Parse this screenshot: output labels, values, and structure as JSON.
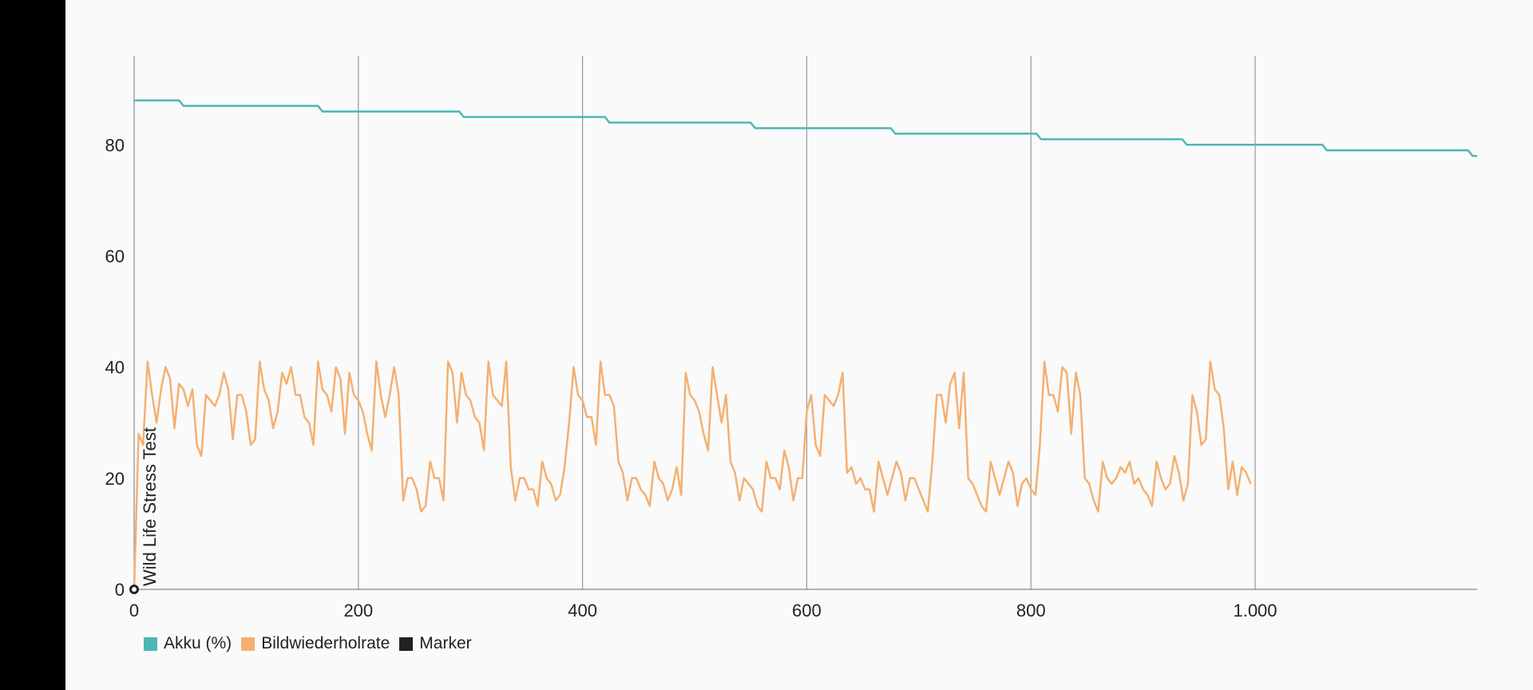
{
  "colors": {
    "battery": "#4cb8b4",
    "framerate": "#f5b070",
    "marker": "#222222",
    "grid": "#999999",
    "axis": "#888888"
  },
  "chart_data": {
    "type": "line",
    "title": "",
    "xlabel": "",
    "ylabel": "",
    "xlim": [
      0,
      1198
    ],
    "ylim": [
      0,
      96
    ],
    "x_ticks": [
      0,
      200,
      400,
      600,
      800,
      1000
    ],
    "x_tick_labels": [
      "0",
      "200",
      "400",
      "600",
      "800",
      "1.000"
    ],
    "y_ticks": [
      0,
      20,
      40,
      60,
      80
    ],
    "y_tick_labels": [
      "0",
      "20",
      "40",
      "60",
      "80"
    ],
    "grid": "vertical",
    "legend_position": "bottom-left",
    "series": [
      {
        "name": "Akku (%)",
        "type": "step",
        "points": [
          [
            0,
            88
          ],
          [
            40,
            88
          ],
          [
            44,
            87
          ],
          [
            164,
            87
          ],
          [
            168,
            86
          ],
          [
            290,
            86
          ],
          [
            294,
            85
          ],
          [
            420,
            85
          ],
          [
            424,
            84
          ],
          [
            550,
            84
          ],
          [
            554,
            83
          ],
          [
            675,
            83
          ],
          [
            679,
            82
          ],
          [
            805,
            82
          ],
          [
            809,
            81
          ],
          [
            935,
            81
          ],
          [
            939,
            80
          ],
          [
            1060,
            80
          ],
          [
            1064,
            79
          ],
          [
            1190,
            79
          ],
          [
            1194,
            78
          ],
          [
            1198,
            78
          ]
        ]
      },
      {
        "name": "Bildwiederholrate",
        "x_start": 0,
        "x_step": 4,
        "values": [
          0,
          28,
          26,
          41,
          35,
          30,
          36,
          40,
          38,
          29,
          37,
          36,
          33,
          36,
          26,
          24,
          35,
          34,
          33,
          35,
          39,
          36,
          27,
          35,
          35,
          32,
          26,
          27,
          41,
          36,
          34,
          29,
          32,
          39,
          37,
          40,
          35,
          35,
          31,
          30,
          26,
          41,
          36,
          35,
          32,
          40,
          38,
          28,
          39,
          35,
          34,
          32,
          28,
          25,
          41,
          35,
          31,
          35,
          40,
          35,
          16,
          20,
          20,
          18,
          14,
          15,
          23,
          20,
          20,
          16,
          41,
          39,
          30,
          39,
          35,
          34,
          31,
          30,
          25,
          41,
          35,
          34,
          33,
          41,
          22,
          16,
          20,
          20,
          18,
          18,
          15,
          23,
          20,
          19,
          16,
          17,
          22,
          30,
          40,
          35,
          34,
          31,
          31,
          26,
          41,
          35,
          35,
          33,
          23,
          21,
          16,
          20,
          20,
          18,
          17,
          15,
          23,
          20,
          19,
          16,
          18,
          22,
          17,
          39,
          35,
          34,
          32,
          28,
          25,
          40,
          35,
          30,
          35,
          23,
          21,
          16,
          20,
          19,
          18,
          15,
          14,
          23,
          20,
          20,
          18,
          25,
          22,
          16,
          20,
          20,
          32,
          35,
          26,
          24,
          35,
          34,
          33,
          35,
          39,
          21,
          22,
          19,
          20,
          18,
          18,
          14,
          23,
          20,
          17,
          20,
          23,
          21,
          16,
          20,
          20,
          18,
          16,
          14,
          23,
          35,
          35,
          30,
          37,
          39,
          29,
          39,
          20,
          19,
          17,
          15,
          14,
          23,
          20,
          17,
          20,
          23,
          21,
          15,
          19,
          20,
          18,
          17,
          26,
          41,
          35,
          35,
          32,
          40,
          39,
          28,
          39,
          35,
          20,
          19,
          16,
          14,
          23,
          20,
          19,
          20,
          22,
          21,
          23,
          19,
          20,
          18,
          17,
          15,
          23,
          20,
          18,
          19,
          24,
          21,
          16,
          19,
          35,
          32,
          26,
          27,
          41,
          36,
          35,
          29,
          18,
          23,
          17,
          22,
          21,
          19
        ]
      },
      {
        "name": "Marker",
        "type": "marker",
        "points": [
          [
            0,
            0
          ]
        ],
        "label": "Wild Life Stress Test"
      }
    ]
  }
}
